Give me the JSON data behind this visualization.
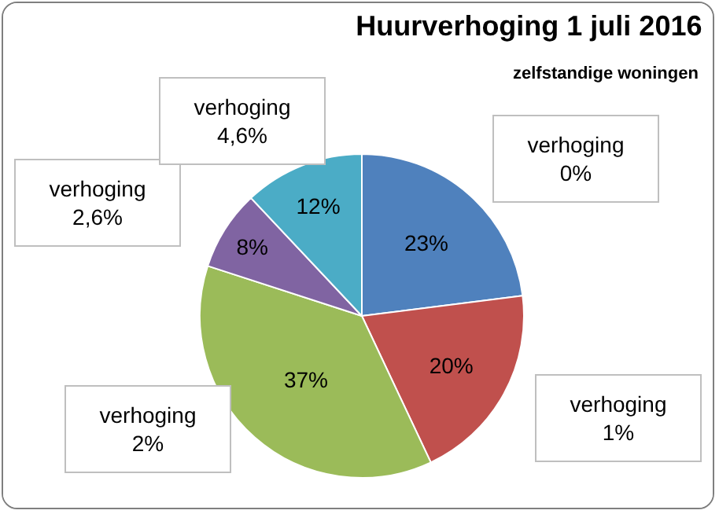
{
  "chart_data": {
    "type": "pie",
    "title": "Huurverhoging 1 juli 2016",
    "subtitle": "zelfstandige woningen",
    "categories": [
      "verhoging 0%",
      "verhoging 1%",
      "verhoging 2%",
      "verhoging 2,6%",
      "verhoging 4,6%"
    ],
    "values": [
      23,
      20,
      37,
      8,
      12
    ],
    "value_labels": [
      "23%",
      "20%",
      "37%",
      "8%",
      "12%"
    ],
    "colors": [
      "#4f81bd",
      "#c0504d",
      "#9bbb59",
      "#8064a2",
      "#4bacc6"
    ],
    "legend": false
  }
}
